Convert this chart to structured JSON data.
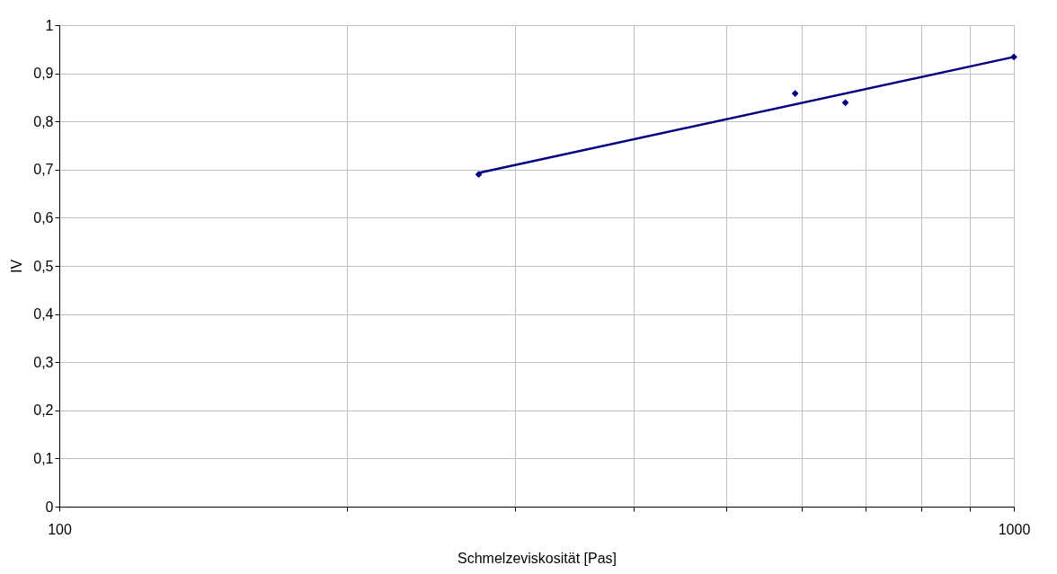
{
  "chart_data": {
    "type": "scatter",
    "xlabel": "Schmelzeviskosität [Pas]",
    "ylabel": "IV",
    "log": "x",
    "grid": true,
    "marker": "diamond",
    "xlim": [
      100,
      1000
    ],
    "ylim": [
      0,
      1
    ],
    "xticks": [
      100,
      {
        "value": 200,
        "label": null
      },
      {
        "value": 300,
        "label": null
      },
      {
        "value": 400,
        "label": null
      },
      {
        "value": 500,
        "label": null
      },
      {
        "value": 600,
        "label": null
      },
      {
        "value": 700,
        "label": null
      },
      {
        "value": 800,
        "label": null
      },
      {
        "value": 900,
        "label": null
      },
      1000
    ],
    "yticks": [
      {
        "value": 0,
        "label": "0"
      },
      {
        "value": 0.1,
        "label": "0,1"
      },
      {
        "value": 0.2,
        "label": "0,2"
      },
      {
        "value": 0.3,
        "label": "0,3"
      },
      {
        "value": 0.4,
        "label": "0,4"
      },
      {
        "value": 0.5,
        "label": "0,5"
      },
      {
        "value": 0.6,
        "label": "0,6"
      },
      {
        "value": 0.7,
        "label": "0,7"
      },
      {
        "value": 0.8,
        "label": "0,8"
      },
      {
        "value": 0.9,
        "label": "0,9"
      },
      {
        "value": 1,
        "label": "1"
      }
    ],
    "series": [
      {
        "color": "#000080",
        "x": [
          275,
          590,
          666,
          1000
        ],
        "values": [
          0.69,
          0.858,
          0.839,
          0.934
        ]
      },
      {
        "type": "line",
        "color": "#000080",
        "x": [
          275,
          1000
        ],
        "values": [
          0.693,
          0.934
        ],
        "line_style": "solid",
        "marker": "none"
      }
    ]
  }
}
